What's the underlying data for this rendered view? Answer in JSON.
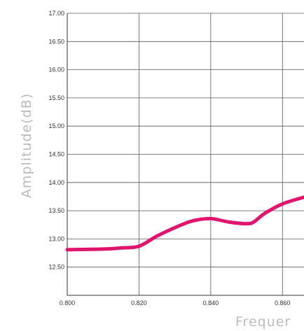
{
  "chart_data": {
    "type": "line",
    "xlabel": "Frequer",
    "ylabel": "Amplitude(dB)",
    "xlim": [
      0.8,
      0.866
    ],
    "ylim": [
      12.0,
      17.0
    ],
    "grid": true,
    "x_ticks": [
      "0.800",
      "0.820",
      "0.840",
      "0.860"
    ],
    "y_ticks": [
      "17.00",
      "16.50",
      "16.00",
      "15.50",
      "15.00",
      "14.50",
      "14.00",
      "13.50",
      "13.00",
      "12.50"
    ],
    "series": [
      {
        "color": "#e0156e",
        "x": [
          0.8,
          0.81,
          0.815,
          0.82,
          0.825,
          0.83,
          0.835,
          0.84,
          0.845,
          0.85,
          0.852,
          0.855,
          0.86,
          0.866
        ],
        "y": [
          12.81,
          12.82,
          12.84,
          12.87,
          13.05,
          13.2,
          13.32,
          13.36,
          13.3,
          13.27,
          13.3,
          13.45,
          13.62,
          13.74
        ]
      }
    ]
  }
}
